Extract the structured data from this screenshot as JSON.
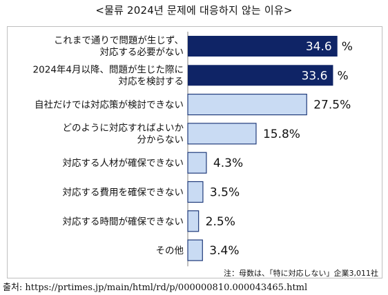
{
  "header": {
    "title": "<물류 2024년 문제에 대응하지 않는 이유>"
  },
  "chart_data": {
    "type": "bar",
    "orientation": "horizontal",
    "categories": [
      [
        "これまで通りで問題が生じず、",
        "対応する必要がない"
      ],
      [
        "2024年4月以降、問題が生じた際に",
        "対応を検討する"
      ],
      [
        "自社だけでは対応策が検討できない"
      ],
      [
        "どのように対応すればよいか",
        "分からない"
      ],
      [
        "対応する人材が確保できない"
      ],
      [
        "対応する費用を確保できない"
      ],
      [
        "対応する時間が確保できない"
      ],
      [
        "その他"
      ]
    ],
    "values": [
      34.6,
      33.6,
      27.5,
      15.8,
      4.3,
      3.5,
      2.5,
      3.4
    ],
    "value_labels": [
      "34.6",
      "33.6",
      "27.5%",
      "15.8%",
      "4.3%",
      "3.5%",
      "2.5%",
      "3.4%"
    ],
    "unit_suffix_outside": [
      "%",
      "%",
      "",
      "",
      "",
      "",
      "",
      ""
    ],
    "highlight": [
      true,
      true,
      false,
      false,
      false,
      false,
      false,
      false
    ],
    "colors": {
      "highlight": "#0f2466",
      "normal": "#c9dbf3",
      "normal_stroke": "#1f3a7a"
    },
    "xlim": [
      0,
      38
    ]
  },
  "footer": {
    "note": "注：母数は、「特に対応しない」企業3,011社",
    "source": "출처: https://prtimes.jp/main/html/rd/p/000000810.000043465.html"
  }
}
